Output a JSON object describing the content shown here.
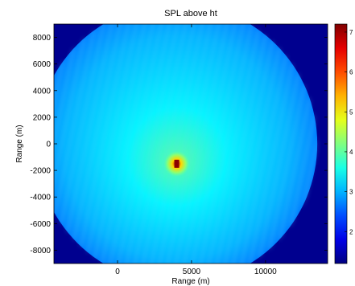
{
  "chart_data": {
    "type": "heatmap",
    "title": "SPL above ht",
    "xlabel": "Range (m)",
    "ylabel": "Range (m)",
    "xlim": [
      -4300,
      14200
    ],
    "ylim": [
      -9000,
      9000
    ],
    "x_ticks": [
      0,
      5000,
      10000
    ],
    "x_tick_labels": [
      "0",
      "5000",
      "10000"
    ],
    "y_ticks": [
      8000,
      6000,
      4000,
      2000,
      0,
      -2000,
      -4000,
      -6000,
      -8000
    ],
    "y_tick_labels": [
      "8000",
      "6000",
      "4000",
      "2000",
      "0",
      "-2000",
      "-4000",
      "-6000",
      "-8000"
    ],
    "colorbar": {
      "min": 1.2,
      "max": 7.2,
      "ticks": [
        7,
        6,
        5,
        4,
        3,
        2
      ],
      "tick_labels": [
        "7",
        "6",
        "5",
        "4",
        "3",
        "2"
      ],
      "colormap": "jet"
    },
    "source": {
      "x": 4000,
      "y": -1500,
      "peak": 7
    },
    "field": {
      "center_x": 4000,
      "center_y": 0,
      "radius": 9500,
      "background_value": 1.3,
      "typical_value": 3.0,
      "near_source_value": 4.0
    },
    "grid": false
  },
  "colors": {
    "background_low": "#00008f",
    "mid_blue": "#1e90ff",
    "source_peak": "#8b0000"
  }
}
